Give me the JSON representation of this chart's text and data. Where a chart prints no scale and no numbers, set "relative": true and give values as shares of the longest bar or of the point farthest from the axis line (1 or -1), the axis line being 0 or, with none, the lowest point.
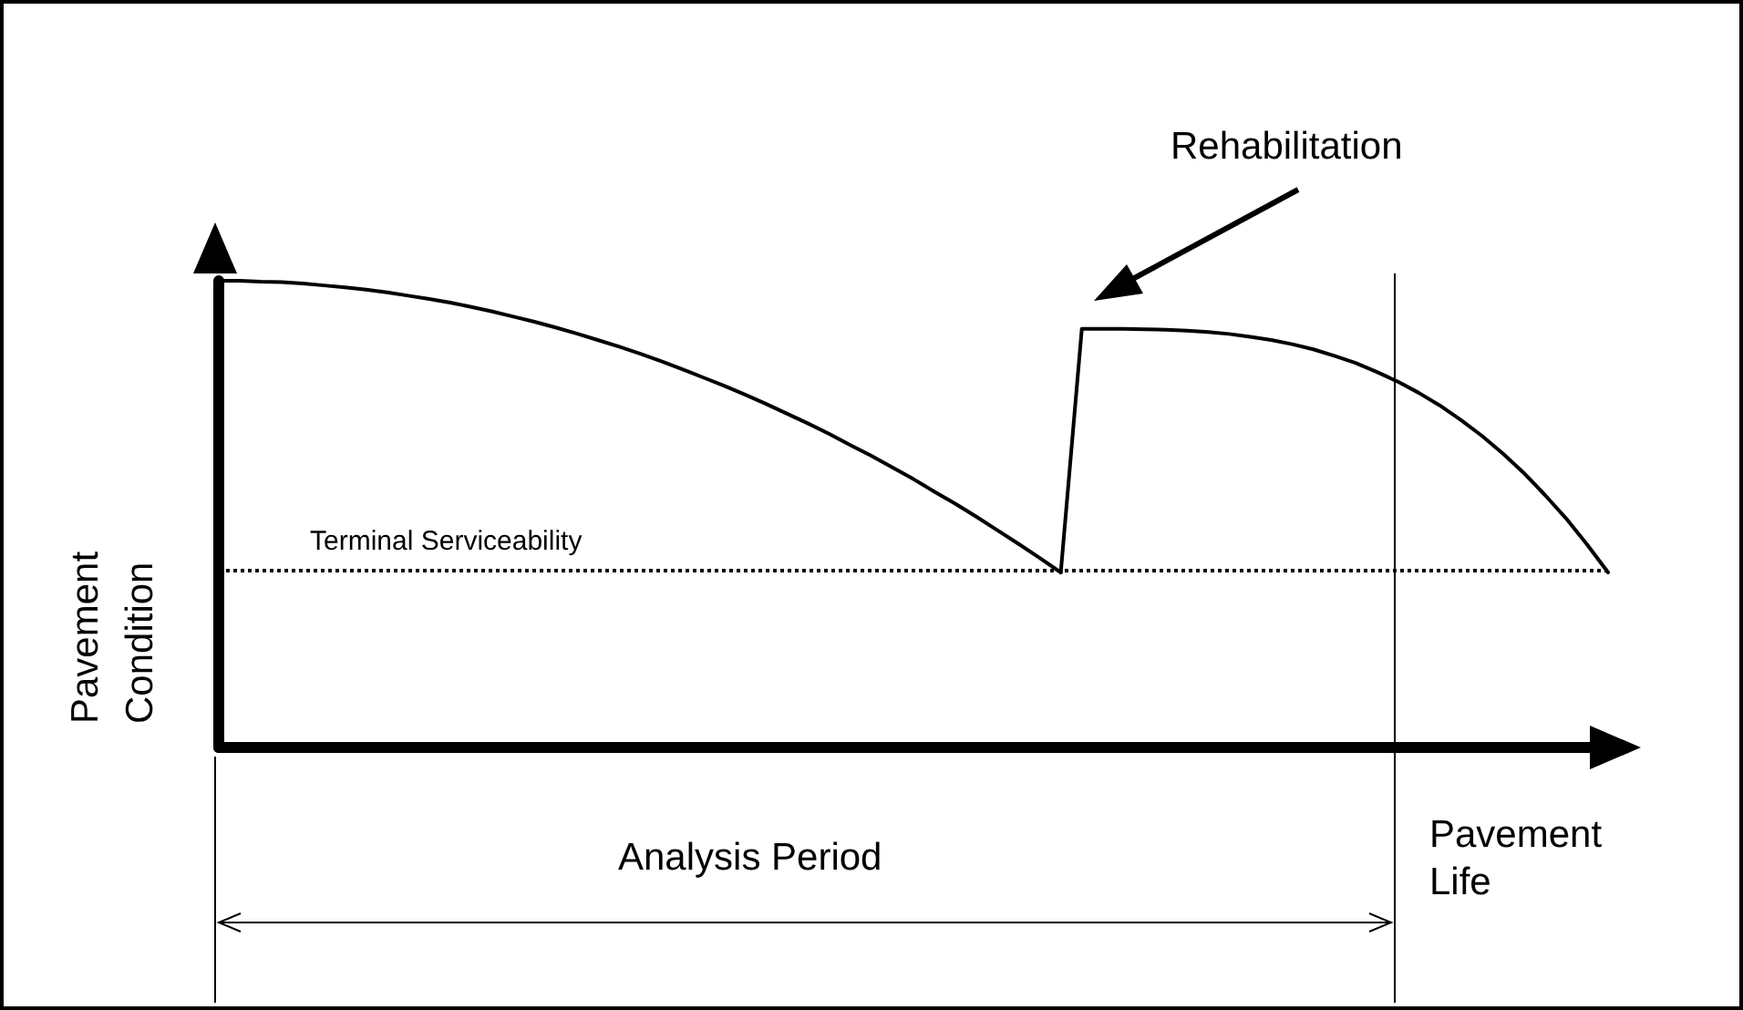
{
  "chart_data": {
    "type": "line",
    "relative": true,
    "xlabel": "Pavement Life",
    "ylabel": "Pavement Condition",
    "categories": [
      null,
      null,
      null,
      null,
      null,
      null,
      null,
      null,
      null,
      null,
      null,
      null,
      null,
      null,
      null,
      null,
      null,
      null,
      null,
      null,
      null,
      null,
      null,
      null,
      null,
      null,
      null,
      null,
      null,
      null,
      null,
      null,
      null,
      null,
      null,
      null,
      null,
      null,
      null,
      null,
      null,
      null,
      null,
      null,
      null,
      null,
      null,
      null,
      null,
      null,
      null,
      null,
      null,
      null,
      null,
      null,
      null,
      null,
      null,
      null,
      null,
      null,
      null,
      null,
      null,
      null,
      null
    ],
    "series": [
      {
        "color": "#000000",
        "values": [
          1,
          1,
          0.998,
          0.997,
          0.994,
          0.99,
          0.986,
          0.981,
          0.975,
          0.968,
          0.961,
          0.953,
          0.944,
          0.934,
          0.923,
          0.912,
          0.9,
          0.887,
          0.873,
          0.859,
          0.844,
          0.828,
          0.811,
          0.793,
          0.775,
          0.756,
          0.736,
          0.715,
          0.694,
          0.672,
          0.648,
          0.625,
          0.6,
          0.575,
          0.548,
          0.522,
          0.494,
          0.465,
          0.436,
          0.406,
          0.375,
          null,
          null,
          null,
          null,
          null,
          null,
          null,
          null,
          null,
          null,
          null,
          null,
          null,
          null,
          null,
          null,
          null,
          null,
          null,
          null,
          null,
          null,
          null,
          null,
          null,
          null
        ]
      },
      {
        "color": "#000000",
        "values": [
          null,
          null,
          null,
          null,
          null,
          null,
          null,
          null,
          null,
          null,
          null,
          null,
          null,
          null,
          null,
          null,
          null,
          null,
          null,
          null,
          null,
          null,
          null,
          null,
          null,
          null,
          null,
          null,
          null,
          null,
          null,
          null,
          null,
          null,
          null,
          null,
          null,
          null,
          null,
          null,
          0.375,
          0.897,
          0.897,
          0.897,
          0.896,
          0.895,
          0.893,
          0.89,
          0.886,
          0.88,
          0.873,
          0.864,
          0.853,
          0.839,
          0.824,
          0.805,
          0.784,
          0.76,
          0.733,
          0.702,
          0.668,
          0.63,
          0.588,
          0.541,
          0.491,
          0.435,
          0.375
        ]
      }
    ],
    "ref_lines": [
      {
        "axis": "y",
        "value": 0.375,
        "label": "Terminal Serviceability",
        "color": "#000000",
        "line_style": "dotted"
      }
    ],
    "annotations": [
      "Rehabilitation",
      "Analysis Period"
    ],
    "marker": "none",
    "line_style": "solid"
  }
}
